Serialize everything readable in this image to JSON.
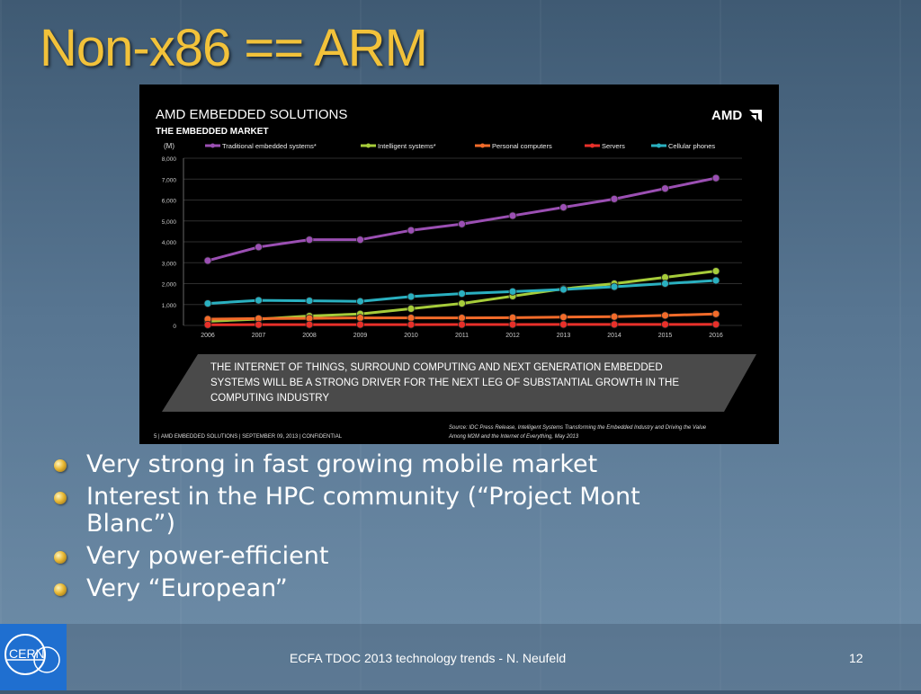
{
  "slide": {
    "title": "Non-x86 == ARM",
    "bullets": [
      "Very strong in fast growing mobile market",
      "Interest in the HPC community (“Project Mont Blanc”)",
      "Very power-efficient",
      "Very “European”"
    ],
    "footer": "ECFA TDOC 2013 technology trends - N. Neufeld",
    "page_number": "12",
    "logo_text": "CERN"
  },
  "panel": {
    "heading": "AMD EMBEDDED SOLUTIONS",
    "subheading": "THE EMBEDDED MARKET",
    "brand": "AMD",
    "callout_lines": [
      "THE INTERNET OF THINGS, SURROUND COMPUTING AND NEXT GENERATION EMBEDDED",
      "SYSTEMS WILL BE A STRONG DRIVER FOR THE NEXT LEG OF SUBSTANTIAL GROWTH IN THE",
      "COMPUTING INDUSTRY"
    ],
    "footer_left": "5  |  AMD EMBEDDED SOLUTIONS  |  SEPTEMBER 09, 2013  |  CONFIDENTIAL",
    "source_lines": [
      "Source: IDC Press Release, Intelligent Systems Transforming the Embedded Industry and Driving the Value",
      "Among M2M and the Internet of Everything, May 2013"
    ]
  },
  "chart_data": {
    "type": "line",
    "ylabel": "(M)",
    "ylim": [
      0,
      8000
    ],
    "yticks": [
      "0",
      "1,000",
      "2,000",
      "3,000",
      "4,000",
      "5,000",
      "6,000",
      "7,000",
      "8,000"
    ],
    "x": [
      "2006",
      "2007",
      "2008",
      "2009",
      "2010",
      "2011",
      "2012",
      "2013",
      "2014",
      "2015",
      "2016"
    ],
    "grid": true,
    "legend": "top",
    "series": [
      {
        "name": "Traditional embedded systems*",
        "color": "#9b4fb3",
        "values": [
          3100,
          3750,
          4100,
          4100,
          4550,
          4850,
          5250,
          5650,
          6050,
          6550,
          7050
        ]
      },
      {
        "name": "Intelligent systems*",
        "color": "#a6cc3a",
        "values": [
          200,
          300,
          450,
          550,
          800,
          1050,
          1400,
          1750,
          2000,
          2300,
          2600
        ]
      },
      {
        "name": "Personal computers",
        "color": "#f26b2a",
        "values": [
          300,
          330,
          340,
          360,
          360,
          360,
          370,
          400,
          420,
          480,
          550
        ]
      },
      {
        "name": "Servers",
        "color": "#e8302a",
        "values": [
          30,
          35,
          38,
          40,
          40,
          42,
          44,
          46,
          48,
          50,
          52
        ]
      },
      {
        "name": "Cellular phones",
        "color": "#2ab0c0",
        "values": [
          1050,
          1200,
          1180,
          1150,
          1380,
          1520,
          1620,
          1720,
          1850,
          2000,
          2150
        ]
      }
    ]
  }
}
